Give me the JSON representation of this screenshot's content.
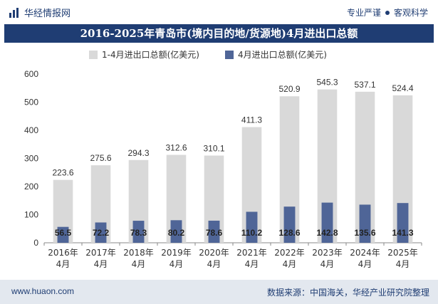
{
  "header": {
    "brand": "华经情报网",
    "tagline_left": "专业严谨",
    "tagline_right": "客观科学"
  },
  "chart_data": {
    "type": "bar",
    "title": "2016-2025年青岛市(境内目的地/货源地)4月进出口总额",
    "categories": [
      [
        "2016年",
        "4月"
      ],
      [
        "2017年",
        "4月"
      ],
      [
        "2018年",
        "4月"
      ],
      [
        "2019年",
        "4月"
      ],
      [
        "2020年",
        "4月"
      ],
      [
        "2021年",
        "4月"
      ],
      [
        "2022年",
        "4月"
      ],
      [
        "2023年",
        "4月"
      ],
      [
        "2024年",
        "4月"
      ],
      [
        "2025年",
        "4月"
      ]
    ],
    "series": [
      {
        "name": "1-4月进出口总额(亿美元)",
        "color": "#d9d9d9",
        "values": [
          223.6,
          275.6,
          294.3,
          312.6,
          310.1,
          411.3,
          520.9,
          545.3,
          537.1,
          524.4
        ],
        "labels": [
          "223.6",
          "275.6",
          "294.3",
          "312.6",
          "310.1",
          "411.3",
          "520.9",
          "545.3",
          "537.1",
          "524.4"
        ]
      },
      {
        "name": "4月进出口总额(亿美元)",
        "color": "#4f6597",
        "values": [
          56.5,
          72.2,
          78.3,
          80.2,
          78.6,
          110.2,
          128.6,
          142.8,
          135.6,
          141.3
        ],
        "labels": [
          "56.5",
          "72.2",
          "78.3",
          "80.2",
          "78.6",
          "110.2",
          "128.6",
          "142.8",
          "135.6",
          "141.3"
        ]
      }
    ],
    "ylim": [
      0,
      600
    ],
    "yticks": [
      "0",
      "100",
      "200",
      "300",
      "400",
      "500",
      "600"
    ],
    "grid": false,
    "legend_position": "top"
  },
  "footer": {
    "website": "www.huaon.com",
    "source": "数据来源：中国海关，华经产业研究院整理"
  }
}
